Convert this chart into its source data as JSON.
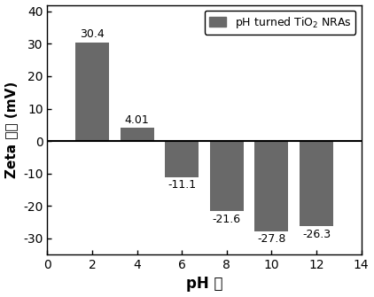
{
  "ph_values": [
    2,
    4,
    6,
    8,
    10,
    12
  ],
  "zeta_values": [
    30.4,
    4.01,
    -11.1,
    -21.6,
    -27.8,
    -26.3
  ],
  "bar_labels": [
    "30.4",
    "4.01",
    "-11.1",
    "-21.6",
    "-27.8",
    "-26.3"
  ],
  "bar_color": "#696969",
  "bar_width": 1.5,
  "xlim": [
    0,
    14
  ],
  "ylim": [
    -35,
    42
  ],
  "xticks": [
    0,
    2,
    4,
    6,
    8,
    10,
    12,
    14
  ],
  "yticks": [
    -30,
    -20,
    -10,
    0,
    10,
    20,
    30,
    40
  ],
  "xlabel": "pH 倘",
  "ylabel_latin": "Zeta ",
  "ylabel_chinese": "电势",
  "ylabel_unit": " (mV)",
  "legend_label_math": "pH turned TiO$_2$ NRAs",
  "bg_color": "#ffffff",
  "bar_label_fontsize": 9,
  "tick_fontsize": 10,
  "axis_label_fontsize": 12,
  "legend_fontsize": 9
}
